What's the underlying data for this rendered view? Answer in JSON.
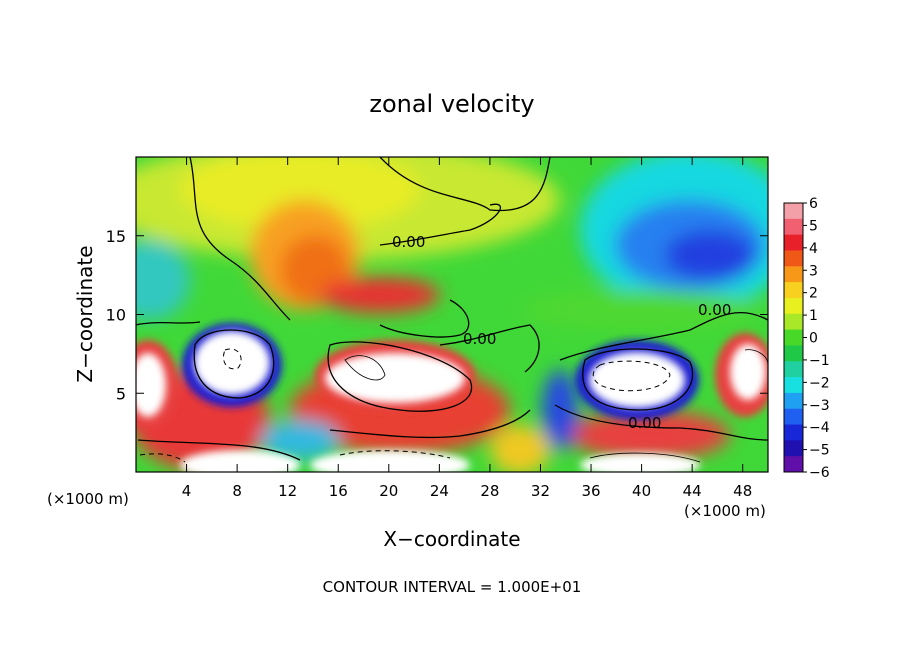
{
  "chart_data": {
    "type": "heatmap",
    "title": "zonal velocity",
    "xlabel": "X−coordinate",
    "ylabel": "Z−coordinate",
    "x_units_left": "(×1000 m)",
    "x_units_right": "(×1000 m)",
    "xlim": [
      0,
      50
    ],
    "ylim": [
      0,
      20
    ],
    "x_ticks": [
      4,
      8,
      12,
      16,
      20,
      24,
      28,
      32,
      36,
      40,
      44,
      48
    ],
    "y_ticks": [
      5,
      10,
      15
    ],
    "colorbar": {
      "ticks": [
        "6",
        "5",
        "4",
        "3",
        "2",
        "1",
        "0",
        "−1",
        "−2",
        "−3",
        "−4",
        "−5",
        "−6"
      ],
      "range": [
        -6,
        6
      ],
      "colors": [
        "#f3a0a8",
        "#f06070",
        "#e8202a",
        "#f05818",
        "#f89818",
        "#f8d020",
        "#e8f020",
        "#a8e828",
        "#48d828",
        "#20c848",
        "#20d0a0",
        "#18e0e0",
        "#20a0f0",
        "#2060f0",
        "#1828d8",
        "#2010b0",
        "#6010a8"
      ]
    },
    "contour_labels": [
      "0.00",
      "0.00",
      "0.00",
      "0.00"
    ],
    "annotation": "CONTOUR INTERVAL = 1.000E+01"
  }
}
